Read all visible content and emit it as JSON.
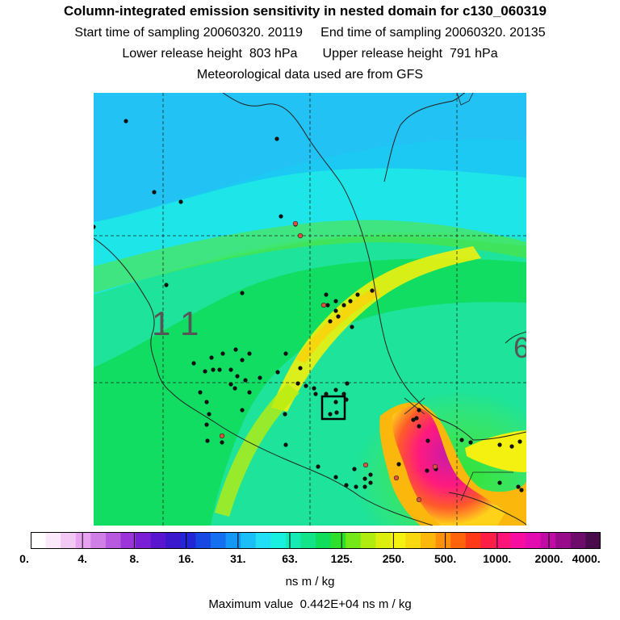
{
  "header": {
    "title": "Column-integrated emission sensitivity in nested domain for c130_060319",
    "line1": "Start time of sampling 20060320. 20119     End time of sampling 20060320. 20135",
    "line2": "Lower release height  803 hPa       Upper release height  791 hPa",
    "line3": "Meteorological data used are from GFS"
  },
  "map": {
    "grid_label": "1 1"
  },
  "colorbar": {
    "ticks": [
      "0.",
      "4.",
      "8.",
      "16.",
      "31.",
      "63.",
      "125.",
      "250.",
      "500.",
      "1000.",
      "2000.",
      "4000."
    ],
    "colors": [
      "#ffffff",
      "#fbe8fb",
      "#f2c8f5",
      "#e7a3ef",
      "#d07fe6",
      "#b75ae0",
      "#9b35d9",
      "#7a1fd6",
      "#5a16cf",
      "#3b18cc",
      "#2326d6",
      "#1848e3",
      "#1470ef",
      "#1598f5",
      "#1bbff7",
      "#23dff5",
      "#1af0e0",
      "#16eab5",
      "#13e48a",
      "#10dd5a",
      "#2ee02c",
      "#74e818",
      "#b0ec10",
      "#dcee0d",
      "#f4f00f",
      "#f8d80e",
      "#fbb70b",
      "#fc900a",
      "#fd640c",
      "#fe3a18",
      "#ff1e45",
      "#ff1478",
      "#f70da0",
      "#e30cb0",
      "#c00ba4",
      "#980c8c",
      "#6e0c6c",
      "#4a0b4c"
    ],
    "unit": "ns m / kg"
  },
  "footer": {
    "max_value": "Maximum value  0.442E+04 ns m / kg"
  }
}
